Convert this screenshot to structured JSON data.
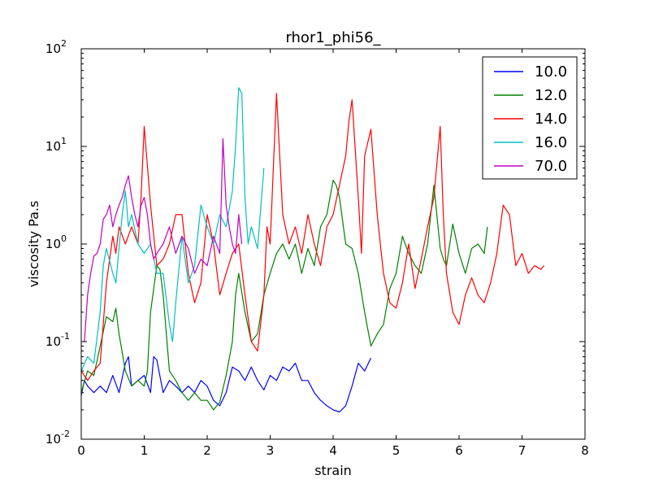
{
  "chart_data": {
    "type": "line",
    "title": "rhor1_phi56_",
    "xlabel": "strain",
    "ylabel": "viscosity Pa.s",
    "xlim": [
      0,
      8
    ],
    "ylim": [
      0.01,
      100
    ],
    "yscale": "log",
    "grid": false,
    "legend_position": "top-right",
    "x_ticks": [
      "0",
      "1",
      "2",
      "3",
      "4",
      "5",
      "6",
      "7",
      "8"
    ],
    "y_ticks": [
      {
        "value": 0.01,
        "base": "10",
        "exp": "-2"
      },
      {
        "value": 0.1,
        "base": "10",
        "exp": "-1"
      },
      {
        "value": 1,
        "base": "10",
        "exp": "0"
      },
      {
        "value": 10,
        "base": "10",
        "exp": "1"
      },
      {
        "value": 100,
        "base": "10",
        "exp": "2"
      }
    ],
    "series": [
      {
        "name": "10.0",
        "color": "#0000ff",
        "x": [
          0.0,
          0.05,
          0.1,
          0.2,
          0.3,
          0.4,
          0.5,
          0.6,
          0.7,
          0.75,
          0.8,
          0.9,
          1.0,
          1.1,
          1.15,
          1.2,
          1.3,
          1.4,
          1.5,
          1.6,
          1.7,
          1.8,
          1.9,
          2.0,
          2.1,
          2.2,
          2.3,
          2.4,
          2.5,
          2.6,
          2.7,
          2.8,
          2.9,
          3.0,
          3.1,
          3.2,
          3.3,
          3.4,
          3.5,
          3.6,
          3.7,
          3.8,
          3.9,
          4.0,
          4.1,
          4.2,
          4.3,
          4.4,
          4.5,
          4.6
        ],
        "y": [
          0.028,
          0.04,
          0.035,
          0.03,
          0.035,
          0.03,
          0.045,
          0.03,
          0.06,
          0.07,
          0.035,
          0.04,
          0.045,
          0.03,
          0.07,
          0.065,
          0.03,
          0.04,
          0.035,
          0.03,
          0.035,
          0.03,
          0.04,
          0.035,
          0.025,
          0.022,
          0.03,
          0.055,
          0.05,
          0.04,
          0.055,
          0.04,
          0.032,
          0.045,
          0.04,
          0.055,
          0.05,
          0.06,
          0.04,
          0.04,
          0.03,
          0.025,
          0.022,
          0.02,
          0.019,
          0.022,
          0.035,
          0.06,
          0.05,
          0.068
        ]
      },
      {
        "name": "12.0",
        "color": "#008000",
        "x": [
          0.0,
          0.1,
          0.2,
          0.3,
          0.4,
          0.5,
          0.55,
          0.6,
          0.7,
          0.8,
          0.9,
          1.0,
          1.05,
          1.1,
          1.2,
          1.25,
          1.3,
          1.4,
          1.5,
          1.6,
          1.7,
          1.8,
          1.9,
          2.0,
          2.1,
          2.2,
          2.3,
          2.4,
          2.45,
          2.5,
          2.6,
          2.7,
          2.8,
          2.9,
          3.0,
          3.1,
          3.2,
          3.3,
          3.4,
          3.5,
          3.6,
          3.7,
          3.8,
          3.9,
          4.0,
          4.05,
          4.1,
          4.2,
          4.3,
          4.4,
          4.5,
          4.6,
          4.7,
          4.8,
          4.9,
          5.0,
          5.1,
          5.2,
          5.3,
          5.4,
          5.5,
          5.6,
          5.7,
          5.75,
          5.8,
          5.9,
          6.0,
          6.1,
          6.2,
          6.3,
          6.4,
          6.45
        ],
        "y": [
          0.03,
          0.05,
          0.045,
          0.09,
          0.18,
          0.16,
          0.22,
          0.12,
          0.05,
          0.035,
          0.04,
          0.035,
          0.05,
          0.2,
          0.6,
          0.55,
          0.3,
          0.05,
          0.04,
          0.03,
          0.025,
          0.03,
          0.025,
          0.025,
          0.02,
          0.024,
          0.045,
          0.1,
          0.3,
          0.5,
          0.2,
          0.1,
          0.12,
          0.3,
          0.5,
          0.8,
          1.0,
          0.7,
          1.0,
          0.5,
          0.9,
          0.6,
          1.5,
          2.0,
          4.5,
          4.0,
          3.0,
          1.0,
          0.9,
          0.5,
          0.2,
          0.09,
          0.12,
          0.15,
          0.35,
          0.5,
          1.2,
          0.8,
          0.6,
          0.5,
          1.0,
          4.0,
          0.9,
          0.7,
          0.6,
          1.6,
          0.8,
          0.5,
          0.9,
          1.0,
          0.8,
          1.5
        ]
      },
      {
        "name": "14.0",
        "color": "#ff0000",
        "x": [
          0.0,
          0.1,
          0.2,
          0.3,
          0.4,
          0.5,
          0.55,
          0.6,
          0.7,
          0.8,
          0.9,
          0.95,
          1.0,
          1.1,
          1.2,
          1.3,
          1.4,
          1.5,
          1.6,
          1.7,
          1.8,
          1.9,
          2.0,
          2.1,
          2.2,
          2.3,
          2.4,
          2.5,
          2.6,
          2.7,
          2.8,
          2.9,
          2.95,
          3.0,
          3.1,
          3.2,
          3.3,
          3.4,
          3.5,
          3.6,
          3.7,
          3.8,
          3.9,
          4.0,
          4.1,
          4.2,
          4.25,
          4.3,
          4.4,
          4.45,
          4.5,
          4.6,
          4.7,
          4.75,
          4.8,
          4.9,
          5.0,
          5.1,
          5.2,
          5.3,
          5.4,
          5.5,
          5.6,
          5.7,
          5.75,
          5.8,
          5.9,
          6.0,
          6.1,
          6.2,
          6.3,
          6.4,
          6.5,
          6.6,
          6.7,
          6.8,
          6.9,
          7.0,
          7.1,
          7.2,
          7.3,
          7.35
        ],
        "y": [
          0.05,
          0.04,
          0.05,
          0.06,
          0.4,
          1.2,
          0.8,
          1.5,
          1.0,
          1.5,
          1.0,
          3.0,
          16.0,
          2.5,
          0.6,
          0.7,
          1.0,
          2.0,
          2.0,
          0.5,
          0.25,
          0.4,
          2.0,
          1.0,
          0.3,
          0.5,
          0.8,
          1.0,
          0.3,
          0.1,
          0.08,
          0.3,
          1.5,
          1.0,
          35.0,
          2.0,
          1.0,
          1.5,
          0.8,
          2.0,
          1.0,
          0.6,
          1.5,
          2.0,
          4.0,
          8.0,
          18.0,
          30.0,
          3.0,
          0.8,
          8.0,
          15.0,
          2.0,
          1.0,
          0.5,
          0.25,
          0.22,
          0.4,
          1.0,
          0.35,
          0.7,
          1.5,
          3.0,
          16.0,
          2.0,
          0.5,
          0.2,
          0.15,
          0.3,
          0.45,
          0.3,
          0.25,
          0.4,
          0.8,
          2.5,
          2.0,
          0.6,
          0.8,
          0.5,
          0.6,
          0.55,
          0.6
        ]
      },
      {
        "name": "16.0",
        "color": "#00bfbf",
        "x": [
          0.0,
          0.1,
          0.2,
          0.3,
          0.35,
          0.4,
          0.5,
          0.55,
          0.6,
          0.65,
          0.7,
          0.75,
          0.8,
          0.9,
          1.0,
          1.1,
          1.2,
          1.3,
          1.4,
          1.45,
          1.5,
          1.6,
          1.7,
          1.8,
          1.9,
          2.0,
          2.1,
          2.2,
          2.3,
          2.4,
          2.45,
          2.5,
          2.55,
          2.6,
          2.65,
          2.7,
          2.8,
          2.9
        ],
        "y": [
          0.05,
          0.07,
          0.06,
          0.2,
          0.6,
          0.9,
          0.5,
          0.4,
          0.9,
          2.0,
          3.5,
          1.5,
          2.0,
          1.0,
          0.8,
          1.0,
          0.5,
          0.5,
          0.15,
          0.1,
          0.25,
          1.2,
          0.4,
          0.6,
          2.5,
          1.5,
          1.0,
          2.0,
          1.5,
          3.5,
          10.0,
          40.0,
          35.0,
          3.0,
          1.0,
          1.5,
          0.9,
          6.0
        ]
      },
      {
        "name": "70.0",
        "color": "#bf00bf",
        "x": [
          0.05,
          0.1,
          0.15,
          0.2,
          0.25,
          0.3,
          0.35,
          0.4,
          0.45,
          0.5,
          0.55,
          0.6,
          0.65,
          0.7,
          0.75,
          0.8,
          0.85,
          0.9,
          0.95,
          1.0,
          1.05,
          1.1,
          1.15,
          1.2,
          1.3,
          1.4,
          1.5,
          1.6,
          1.7,
          1.8,
          1.9,
          2.0,
          2.1,
          2.2,
          2.25,
          2.3,
          2.35,
          2.4,
          2.45,
          2.5,
          2.55
        ],
        "y": [
          0.1,
          0.3,
          0.5,
          0.75,
          0.8,
          1.0,
          1.8,
          2.0,
          2.5,
          1.5,
          2.0,
          2.5,
          3.0,
          4.0,
          5.0,
          3.0,
          2.0,
          1.5,
          2.5,
          3.0,
          2.0,
          1.0,
          0.7,
          0.8,
          1.0,
          1.5,
          0.8,
          1.2,
          0.9,
          0.5,
          0.7,
          0.6,
          1.2,
          0.8,
          12.0,
          2.5,
          1.5,
          1.0,
          0.8,
          2.0,
          1.0
        ]
      }
    ]
  }
}
